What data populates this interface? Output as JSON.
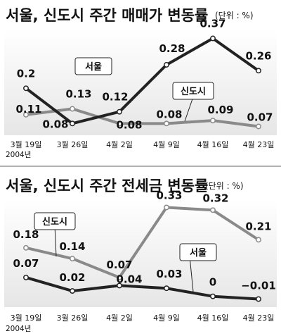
{
  "chart_data": [
    {
      "type": "line",
      "title": "서울, 신도시 주간 매매가 변동률",
      "unit": "(단위 : %)",
      "categories": [
        "3월 19일",
        "3월 26일",
        "4월 2일",
        "4월 9일",
        "4월 16일",
        "4월 23일"
      ],
      "year_label": "2004년",
      "series": [
        {
          "name": "서울",
          "values": [
            0.2,
            0.08,
            0.12,
            0.28,
            0.37,
            0.26
          ],
          "color": "#222222"
        },
        {
          "name": "신도시",
          "values": [
            0.11,
            0.13,
            0.08,
            0.08,
            0.09,
            0.07
          ],
          "color": "#8a8a8a"
        }
      ],
      "value_labels": {
        "서울": [
          "0.2",
          "0.08",
          "0.12",
          "0.28",
          "0.37",
          "0.26"
        ],
        "신도시": [
          "0.11",
          "0.13",
          "0.08",
          "0.08",
          "0.09",
          "0.07"
        ]
      },
      "ylim": [
        0.04,
        0.4
      ],
      "grid": false,
      "legend": "inline labels on lines"
    },
    {
      "type": "line",
      "title": "서울, 신도시 주간 전세금 변동률",
      "unit": "(단위 : %)",
      "categories": [
        "3월 19일",
        "3월 26일",
        "4월 2일",
        "4월 9일",
        "4월 16일",
        "4월 23일"
      ],
      "year_label": "2004년",
      "series": [
        {
          "name": "서울",
          "values": [
            0.07,
            0.02,
            0.04,
            0.03,
            0,
            -0.01
          ],
          "color": "#222222"
        },
        {
          "name": "신도시",
          "values": [
            0.18,
            0.14,
            0.07,
            0.33,
            0.32,
            0.21
          ],
          "color": "#8a8a8a"
        }
      ],
      "value_labels": {
        "서울": [
          "0.07",
          "0.02",
          "0.04",
          "0.03",
          "0",
          "−0.01"
        ],
        "신도시": [
          "0.18",
          "0.14",
          "0.07",
          "0.33",
          "0.32",
          "0.21"
        ]
      },
      "ylim": [
        -0.04,
        0.36
      ],
      "grid": false,
      "legend": "inline labels on lines"
    }
  ]
}
